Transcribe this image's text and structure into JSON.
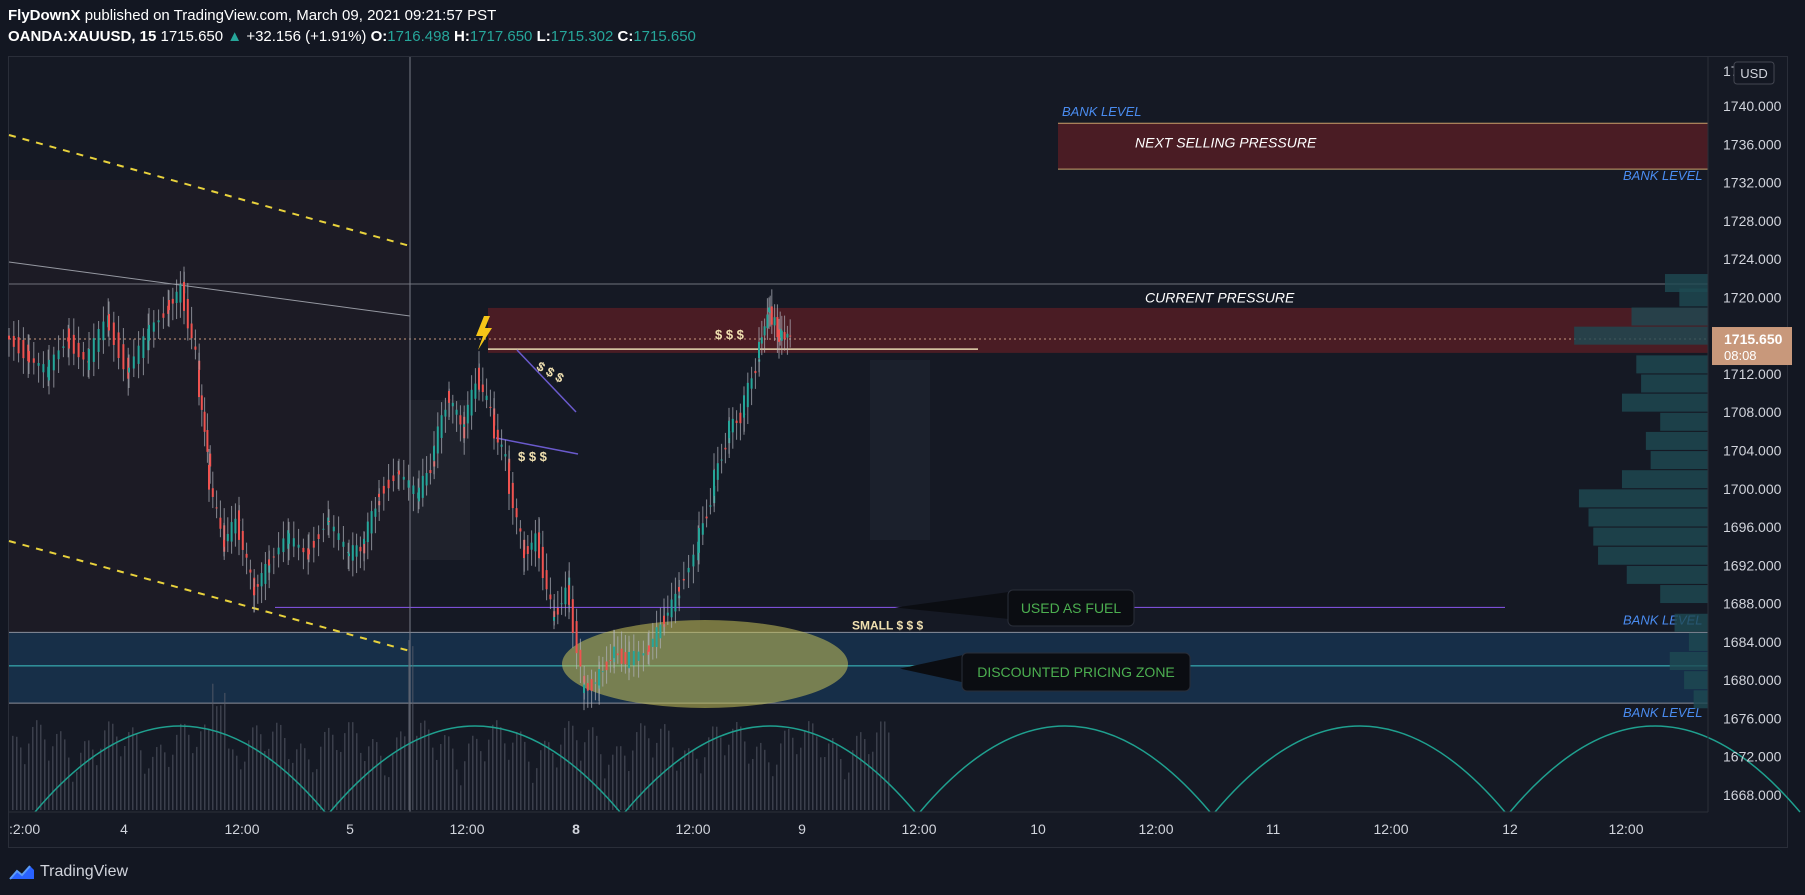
{
  "header": {
    "publisher": "FlyDownX",
    "published_text": "published on TradingView.com, March 09, 2021 09:21:57 PST",
    "symbol": "OANDA:XAUUSD, 15",
    "price": "1715.650",
    "change": "+32.156 (+1.91%)",
    "o_label": "O:",
    "o_value": "1716.498",
    "h_label": "H:",
    "h_value": "1717.650",
    "l_label": "L:",
    "l_value": "1715.302",
    "c_label": "C:",
    "c_value": "1715.650"
  },
  "footer": {
    "brand": "TradingView"
  },
  "colors": {
    "background": "#131722",
    "up_candle": "#26a69a",
    "down_candle": "#ef5350",
    "sell_zone": "#5c1d24",
    "discount_zone": "#16324f",
    "bank_level_text": "#2962ff",
    "annotation_green": "#4caf50",
    "price_tag": "#c8987b",
    "cycle_curve": "#1fa08f"
  },
  "chart_data": {
    "type": "candlestick",
    "currency_badge": "USD",
    "y_axis": {
      "min": 1666,
      "max": 1743,
      "ticks": [
        "1740.000",
        "1736.000",
        "1732.000",
        "1728.000",
        "1724.000",
        "1720.000",
        "1712.000",
        "1708.000",
        "1704.000",
        "1700.000",
        "1696.000",
        "1692.000",
        "1688.000",
        "1684.000",
        "1680.000",
        "1676.000",
        "1672.000",
        "1668.000"
      ],
      "top_partial_tick": "17"
    },
    "x_axis_labels": [
      ":2:00",
      "4",
      "12:00",
      "5",
      "12:00",
      "8",
      "12:00",
      "9",
      "12:00",
      "10",
      "12:00",
      "11",
      "12:00",
      "12",
      "12:00"
    ],
    "current_price": {
      "value": "1715.650",
      "countdown": "08:08"
    },
    "zones": [
      {
        "name": "next-selling-pressure",
        "label": "NEXT SELLING PRESSURE",
        "top": 1738.2,
        "bottom": 1733.4
      },
      {
        "name": "current-pressure",
        "label": "CURRENT PRESSURE",
        "top": 1718.9,
        "bottom": 1714.2
      },
      {
        "name": "discounted-pricing-zone",
        "label": "DISCOUNTED PRICING ZONE",
        "top": 1685.0,
        "bottom": 1677.6
      }
    ],
    "bank_levels": [
      {
        "label": "BANK LEVEL",
        "value": 1738.2
      },
      {
        "label": "BANK LEVEL",
        "value": 1733.4
      },
      {
        "label": "BANK LEVEL",
        "value": 1685.0
      },
      {
        "label": "BANK LEVEL",
        "value": 1677.6
      }
    ],
    "annotations": [
      {
        "text": "$ $ $",
        "near": 1716.2
      },
      {
        "text": "$ $ $",
        "near": 1713.0
      },
      {
        "text": "$ $ $",
        "near": 1703.4
      },
      {
        "text": "SMALL $ $ $",
        "near": 1685.8
      },
      {
        "text": "USED AS FUEL",
        "near": 1688.0
      },
      {
        "text": "DISCOUNTED PRICING ZONE",
        "near": 1681.2
      }
    ],
    "levels": {
      "fuel_line": 1687.6,
      "zone_mid_line": 1681.5,
      "current_top_line": 1721.4,
      "current_low_line": 1714.6
    },
    "price_path": [
      [
        0,
        1716
      ],
      [
        20,
        1714
      ],
      [
        40,
        1712
      ],
      [
        60,
        1716
      ],
      [
        80,
        1713
      ],
      [
        100,
        1718
      ],
      [
        120,
        1712
      ],
      [
        140,
        1716
      ],
      [
        160,
        1719
      ],
      [
        175,
        1721
      ],
      [
        190,
        1712
      ],
      [
        200,
        1702
      ],
      [
        215,
        1694
      ],
      [
        230,
        1697
      ],
      [
        245,
        1689
      ],
      [
        260,
        1692
      ],
      [
        280,
        1695
      ],
      [
        300,
        1693
      ],
      [
        320,
        1697
      ],
      [
        340,
        1693
      ],
      [
        355,
        1694
      ],
      [
        370,
        1699
      ],
      [
        390,
        1702
      ],
      [
        410,
        1699
      ],
      [
        425,
        1703
      ],
      [
        440,
        1710
      ],
      [
        455,
        1706
      ],
      [
        470,
        1712
      ],
      [
        485,
        1707
      ],
      [
        500,
        1702
      ],
      [
        515,
        1693
      ],
      [
        530,
        1695
      ],
      [
        545,
        1686
      ],
      [
        560,
        1690
      ],
      [
        575,
        1679
      ],
      [
        590,
        1680
      ],
      [
        605,
        1683
      ],
      [
        620,
        1682
      ],
      [
        640,
        1683
      ],
      [
        655,
        1686
      ],
      [
        670,
        1689
      ],
      [
        690,
        1694
      ],
      [
        705,
        1700
      ],
      [
        720,
        1706
      ],
      [
        735,
        1708
      ],
      [
        750,
        1714
      ],
      [
        760,
        1719
      ],
      [
        770,
        1716
      ],
      [
        780,
        1716
      ]
    ],
    "volume_profile": [
      [
        1721.5,
        0.09
      ],
      [
        1720,
        0.06
      ],
      [
        1718,
        0.16
      ],
      [
        1716,
        0.28
      ],
      [
        1713,
        0.15
      ],
      [
        1711,
        0.14
      ],
      [
        1709,
        0.18
      ],
      [
        1707,
        0.1
      ],
      [
        1705,
        0.13
      ],
      [
        1703,
        0.12
      ],
      [
        1701,
        0.18
      ],
      [
        1699,
        0.27
      ],
      [
        1697,
        0.25
      ],
      [
        1695,
        0.24
      ],
      [
        1693,
        0.23
      ],
      [
        1691,
        0.17
      ],
      [
        1689,
        0.1
      ],
      [
        1686,
        0.07
      ],
      [
        1684,
        0.04
      ],
      [
        1682,
        0.08
      ],
      [
        1680,
        0.05
      ],
      [
        1678,
        0.03
      ]
    ]
  }
}
